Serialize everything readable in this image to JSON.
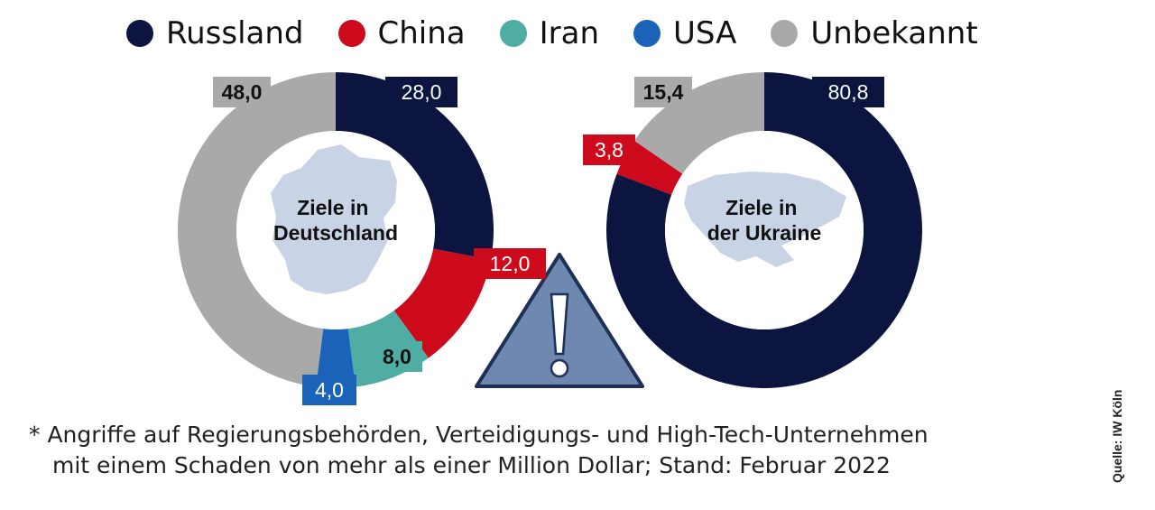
{
  "legend": [
    {
      "name": "Russland",
      "color": "#0b1540"
    },
    {
      "name": "China",
      "color": "#cc0a1c"
    },
    {
      "name": "Iran",
      "color": "#4fada4"
    },
    {
      "name": "USA",
      "color": "#1b63b8"
    },
    {
      "name": "Unbekannt",
      "color": "#a9a9a9"
    }
  ],
  "chart_data": [
    {
      "type": "pie",
      "title": "Ziele in Deutschland",
      "labels": [
        "Russland",
        "China",
        "Iran",
        "USA",
        "Unbekannt"
      ],
      "values": [
        28.0,
        12.0,
        8.0,
        4.0,
        48.0
      ],
      "value_labels": [
        "28,0",
        "12,0",
        "8,0",
        "4,0",
        "48,0"
      ],
      "colors": [
        "#0b1540",
        "#cc0a1c",
        "#4fada4",
        "#1b63b8",
        "#a9a9a9"
      ],
      "title_lines": [
        "Ziele in",
        "Deutschland"
      ]
    },
    {
      "type": "pie",
      "title": "Ziele in der Ukraine",
      "labels": [
        "Russland",
        "China",
        "Unbekannt"
      ],
      "values": [
        80.8,
        3.8,
        15.4
      ],
      "value_labels": [
        "80,8",
        "3,8",
        "15,4"
      ],
      "colors": [
        "#0b1540",
        "#cc0a1c",
        "#a9a9a9"
      ],
      "title_lines": [
        "Ziele in",
        "der Ukraine"
      ]
    }
  ],
  "footnote": {
    "line1": "* Angriffe auf Regierungsbehörden, Verteidigungs- und High-Tech-Unternehmen",
    "line2": "mit einem Schaden von mehr als einer Million Dollar; Stand: Februar 2022"
  },
  "source": "Quelle: IW Köln",
  "warning_icon": "warning-triangle-icon"
}
